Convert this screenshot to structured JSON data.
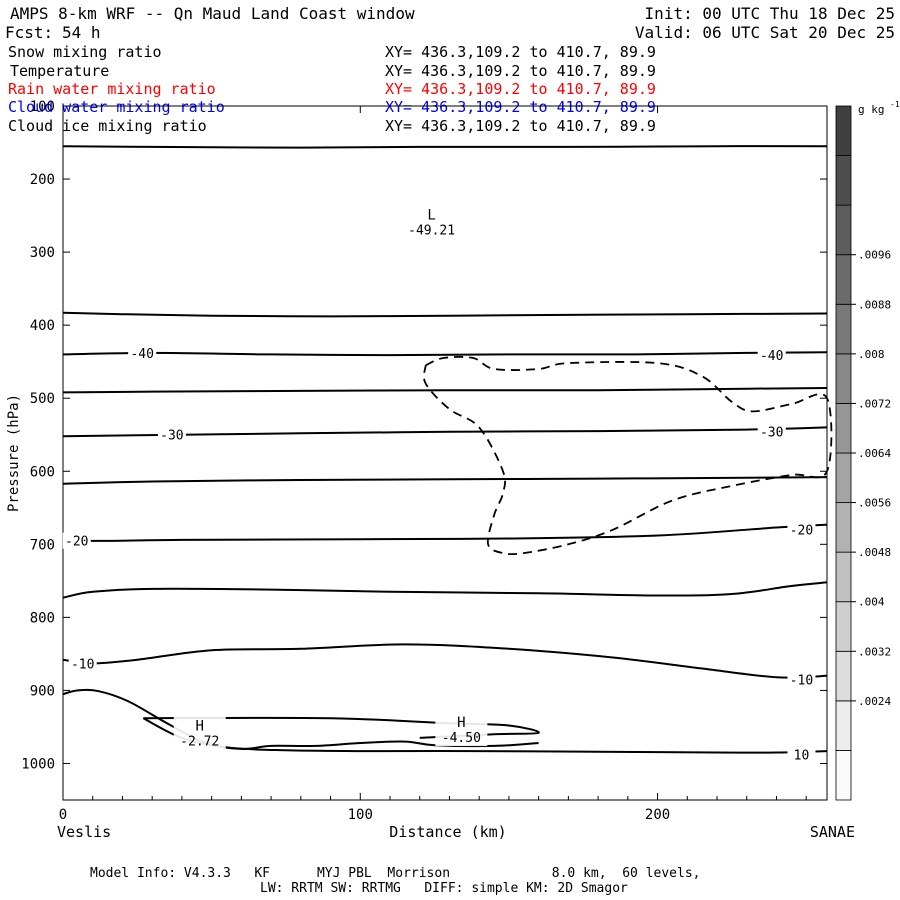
{
  "header": {
    "title": "AMPS 8-km WRF -- Qn Maud Land Coast window",
    "forecast_label": "Fcst:",
    "forecast_hours": "54 h",
    "init": "Init: 00 UTC Thu 18 Dec 25",
    "valid": "Valid: 06 UTC Sat 20 Dec 25"
  },
  "legend": [
    {
      "name": "Snow mixing ratio",
      "xy": "XY= 436.3,109.2 to 410.7, 89.9",
      "color": "#000000"
    },
    {
      "name": "Temperature",
      "xy": "XY= 436.3,109.2 to 410.7, 89.9",
      "color": "#000000"
    },
    {
      "name": "Rain water mixing ratio",
      "xy": "XY= 436.3,109.2 to 410.7, 89.9",
      "color": "#ff0000"
    },
    {
      "name": "Cloud water mixing ratio",
      "xy": "XY= 436.3,109.2 to 410.7, 89.9",
      "color": "#0000ff"
    },
    {
      "name": "Cloud ice mixing ratio",
      "xy": "XY= 436.3,109.2 to 410.7, 89.9",
      "color": "#000000"
    }
  ],
  "footer": {
    "line1": "Model Info: V4.3.3   KF      MYJ PBL  Morrison             8.0 km,  60 levels,",
    "line2": "LW: RRTM SW: RRTMG   DIFF: simple KM: 2D Smagor"
  },
  "chart_data": {
    "type": "line",
    "subtype": "vertical cross-section contour",
    "xlabel": "Distance (km)",
    "ylabel": "Pressure (hPa)",
    "xlim": [
      0,
      257
    ],
    "ylim": [
      1050,
      100
    ],
    "x_ticks": [
      0,
      100,
      200
    ],
    "y_ticks": [
      100,
      200,
      300,
      400,
      500,
      600,
      700,
      800,
      900,
      1000
    ],
    "x_endpoint_labels": {
      "left": "Veslis",
      "right": "SANAE"
    },
    "colorbar": {
      "unit": "g kg",
      "unit_exponent": "-1",
      "tick_labels": [
        ".0024",
        ".0032",
        ".004",
        ".0048",
        ".0056",
        ".0064",
        ".0072",
        ".008",
        ".0088",
        ".0096"
      ],
      "levels": 14,
      "color_light": "#fafafa",
      "color_dark": "#404040"
    },
    "temperature_contours": [
      {
        "label": "",
        "points": [
          [
            0,
            155
          ],
          [
            30,
            156
          ],
          [
            80,
            157
          ],
          [
            120,
            156
          ],
          [
            170,
            156
          ],
          [
            220,
            155
          ],
          [
            257,
            155
          ]
        ]
      },
      {
        "label": "",
        "points": [
          [
            0,
            383
          ],
          [
            20,
            385
          ],
          [
            50,
            387
          ],
          [
            90,
            388
          ],
          [
            130,
            387
          ],
          [
            170,
            386
          ],
          [
            210,
            385
          ],
          [
            257,
            384
          ]
        ]
      },
      {
        "label": "-40",
        "points": [
          [
            0,
            440
          ],
          [
            30,
            438
          ],
          [
            70,
            440
          ],
          [
            110,
            441
          ],
          [
            150,
            440
          ],
          [
            190,
            440
          ],
          [
            230,
            438
          ],
          [
            257,
            437
          ]
        ]
      },
      {
        "label": "",
        "points": [
          [
            0,
            492
          ],
          [
            30,
            491
          ],
          [
            80,
            490
          ],
          [
            130,
            489
          ],
          [
            180,
            489
          ],
          [
            230,
            487
          ],
          [
            257,
            486
          ]
        ]
      },
      {
        "label": "-30",
        "points": [
          [
            0,
            552
          ],
          [
            40,
            550
          ],
          [
            80,
            548
          ],
          [
            130,
            546
          ],
          [
            180,
            545
          ],
          [
            230,
            543
          ],
          [
            257,
            540
          ]
        ]
      },
      {
        "label": "",
        "points": [
          [
            0,
            617
          ],
          [
            30,
            614
          ],
          [
            80,
            612
          ],
          [
            130,
            611
          ],
          [
            180,
            610
          ],
          [
            230,
            609
          ],
          [
            257,
            608
          ]
        ]
      },
      {
        "label": "-20",
        "points": [
          [
            0,
            688
          ],
          [
            8,
            695
          ],
          [
            40,
            694
          ],
          [
            100,
            693
          ],
          [
            150,
            692
          ],
          [
            200,
            688
          ],
          [
            240,
            677
          ],
          [
            257,
            673
          ]
        ]
      },
      {
        "label": "",
        "points": [
          [
            0,
            773
          ],
          [
            10,
            765
          ],
          [
            30,
            761
          ],
          [
            70,
            762
          ],
          [
            110,
            765
          ],
          [
            160,
            767
          ],
          [
            200,
            770
          ],
          [
            225,
            768
          ],
          [
            245,
            757
          ],
          [
            257,
            752
          ]
        ]
      },
      {
        "label": "-10",
        "points": [
          [
            0,
            858
          ],
          [
            10,
            863
          ],
          [
            25,
            858
          ],
          [
            50,
            845
          ],
          [
            80,
            843
          ],
          [
            115,
            837
          ],
          [
            150,
            843
          ],
          [
            185,
            855
          ],
          [
            215,
            870
          ],
          [
            240,
            882
          ],
          [
            257,
            880
          ]
        ]
      },
      {
        "label": "10",
        "points": [
          [
            27,
            938
          ],
          [
            40,
            965
          ],
          [
            55,
            978
          ],
          [
            75,
            982
          ],
          [
            100,
            983
          ],
          [
            140,
            983
          ],
          [
            180,
            984
          ],
          [
            220,
            985
          ],
          [
            240,
            985
          ],
          [
            257,
            983
          ]
        ]
      }
    ],
    "low_center": {
      "x": 124,
      "p": 262,
      "marker": "L",
      "value": "-49.21"
    },
    "high_centers": [
      {
        "x": 46,
        "p": 962,
        "marker": "H",
        "value": "-2.72"
      },
      {
        "x": 134,
        "p": 957,
        "marker": "H",
        "value": "-4.50"
      }
    ],
    "dashed_contour": {
      "label": "cloud ice mixing ratio",
      "points": [
        [
          122,
          455
        ],
        [
          128,
          445
        ],
        [
          138,
          445
        ],
        [
          145,
          460
        ],
        [
          160,
          460
        ],
        [
          170,
          452
        ],
        [
          200,
          452
        ],
        [
          215,
          470
        ],
        [
          225,
          505
        ],
        [
          232,
          518
        ],
        [
          245,
          508
        ],
        [
          257,
          500
        ],
        [
          257,
          600
        ],
        [
          245,
          605
        ],
        [
          225,
          620
        ],
        [
          205,
          640
        ],
        [
          185,
          680
        ],
        [
          170,
          700
        ],
        [
          155,
          712
        ],
        [
          148,
          712
        ],
        [
          143,
          700
        ],
        [
          145,
          660
        ],
        [
          148,
          630
        ],
        [
          148,
          600
        ],
        [
          140,
          540
        ],
        [
          130,
          515
        ],
        [
          122,
          480
        ],
        [
          122,
          455
        ]
      ]
    },
    "surface_profile": [
      [
        0,
        905
      ],
      [
        5,
        900
      ],
      [
        12,
        901
      ],
      [
        22,
        915
      ],
      [
        35,
        945
      ],
      [
        48,
        972
      ],
      [
        60,
        980
      ],
      [
        70,
        976
      ],
      [
        85,
        976
      ],
      [
        100,
        972
      ],
      [
        115,
        970
      ],
      [
        125,
        975
      ],
      [
        145,
        976
      ],
      [
        160,
        972
      ]
    ]
  }
}
